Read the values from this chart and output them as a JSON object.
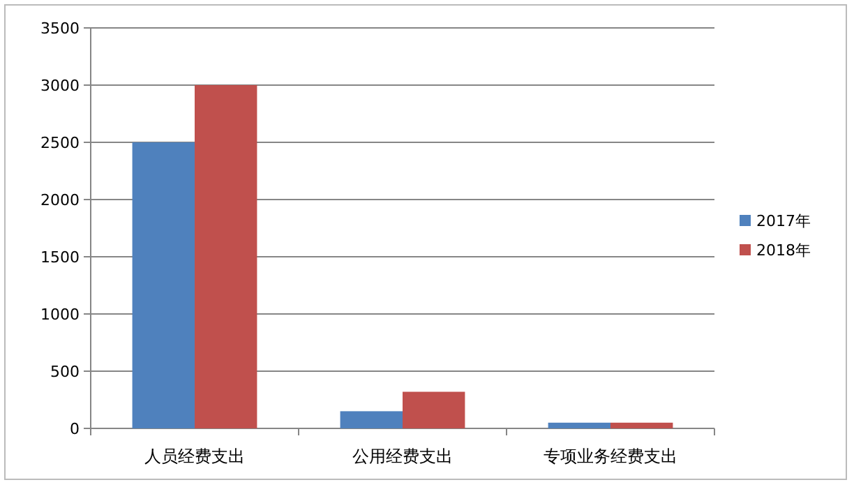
{
  "chart_data": {
    "type": "bar",
    "categories": [
      "人员经费支出",
      "公用经费支出",
      "专项业务经费支出"
    ],
    "series": [
      {
        "name": "2017年",
        "color": "#4f81bd",
        "values": [
          2500,
          150,
          50
        ]
      },
      {
        "name": "2018年",
        "color": "#c0504d",
        "values": [
          3000,
          320,
          50
        ]
      }
    ],
    "ylim": [
      0,
      3500
    ],
    "yticks": [
      0,
      500,
      1000,
      1500,
      2000,
      2500,
      3000,
      3500
    ],
    "grid": "y",
    "legend": "right"
  }
}
